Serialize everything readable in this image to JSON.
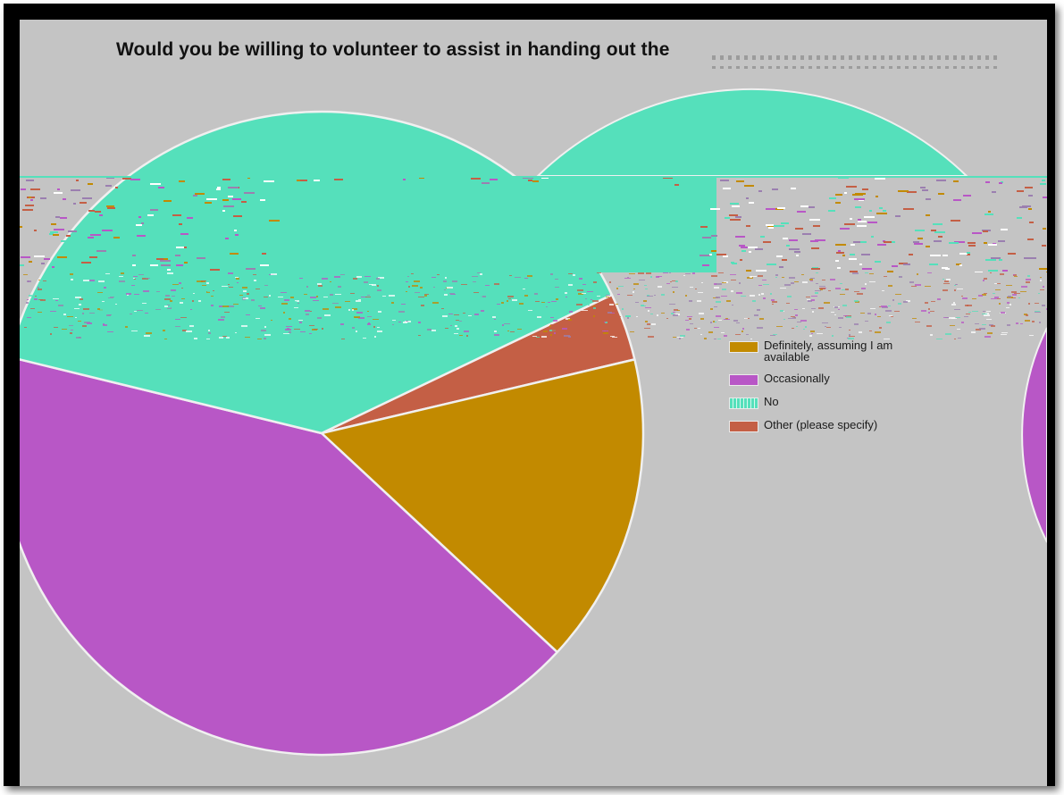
{
  "chart_data": {
    "type": "pie",
    "title": "Would you be willing to volunteer to assist in handing out the",
    "legend_position": "right",
    "slices": [
      {
        "label": "Definitely, assuming I am available",
        "value": 15.6,
        "color": "#c28a00"
      },
      {
        "label": "Occasionally",
        "value": 41.9,
        "color": "#b857c6"
      },
      {
        "label": "No",
        "value": 39.1,
        "color": "#55e0bb"
      },
      {
        "label": "Other (please specify)",
        "value": 3.4,
        "color": "#c45f45"
      }
    ]
  },
  "legend": {
    "items": [
      {
        "label": "Definitely, assuming I am available",
        "color": "#c28a00"
      },
      {
        "label": "Occasionally",
        "color": "#b857c6"
      },
      {
        "label": "No",
        "color": "#55e0bb"
      },
      {
        "label": "Other (please specify)",
        "color": "#c45f45"
      }
    ]
  }
}
